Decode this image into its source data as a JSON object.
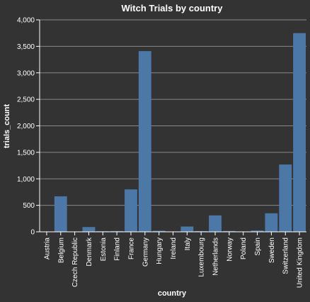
{
  "chart_data": {
    "type": "bar",
    "title": "Witch Trials by country",
    "xlabel": "country",
    "ylabel": "trials_count",
    "ylim": [
      0,
      4000
    ],
    "yticks": [
      0,
      500,
      1000,
      1500,
      2000,
      2500,
      3000,
      3500,
      4000
    ],
    "ytick_labels": [
      "0",
      "500",
      "1,000",
      "1,500",
      "2,000",
      "2,500",
      "3,000",
      "3,500",
      "4,000"
    ],
    "grid": true,
    "categories": [
      "Austria",
      "Belgium",
      "Czech Republic",
      "Denmark",
      "Estonia",
      "Finland",
      "France",
      "Germany",
      "Hungary",
      "Ireland",
      "Italy",
      "Luxembourg",
      "Netherlands",
      "Norway",
      "Poland",
      "Spain",
      "Sweden",
      "Switzerland",
      "United Kingdom"
    ],
    "values": [
      2,
      670,
      4,
      90,
      12,
      15,
      800,
      3410,
      20,
      3,
      100,
      14,
      310,
      16,
      6,
      25,
      350,
      1270,
      3750
    ],
    "bar_color": "#4c78a8",
    "grid_color": "#888888",
    "axis_color": "#ffffff",
    "background": "#333333"
  }
}
